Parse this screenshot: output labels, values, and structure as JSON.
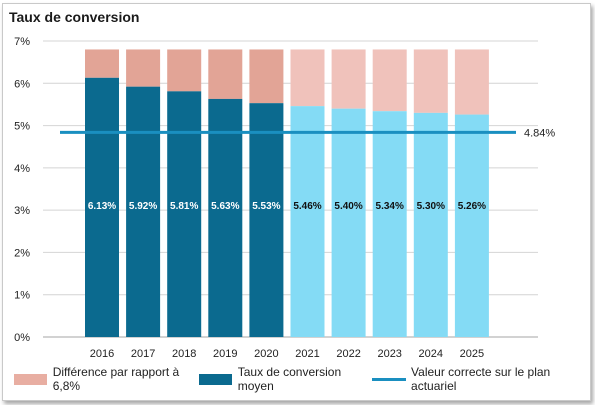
{
  "chart_data": {
    "type": "bar",
    "title": "Taux de conversion",
    "categories": [
      "2016",
      "2017",
      "2018",
      "2019",
      "2020",
      "2021",
      "2022",
      "2023",
      "2024",
      "2025"
    ],
    "series": [
      {
        "name": "Taux de conversion moyen",
        "values": [
          6.13,
          5.92,
          5.81,
          5.63,
          5.53,
          5.46,
          5.4,
          5.34,
          5.3,
          5.26
        ],
        "labels": [
          "6.13%",
          "5.92%",
          "5.81%",
          "5.63%",
          "5.53%",
          "5.46%",
          "5.40%",
          "5.34%",
          "5.30%",
          "5.26%"
        ],
        "color_historic": "#0b6a8f",
        "color_forecast": "#84dbf5",
        "forecast_from": "2021"
      },
      {
        "name": "Différence par rapport à 6,8%",
        "stack_top": 6.8,
        "color_historic": "#e2a496",
        "color_forecast": "#f0c2bb"
      },
      {
        "name": "Valeur correcte sur le plan actuariel",
        "type": "line",
        "value": 4.84,
        "label": "4.84%",
        "color": "#1a8fc0"
      }
    ],
    "ylim": [
      0,
      7
    ],
    "yticks": [
      "0%",
      "1%",
      "2%",
      "3%",
      "4%",
      "5%",
      "6%",
      "7%"
    ],
    "grid": true,
    "legend_position": "bottom"
  }
}
